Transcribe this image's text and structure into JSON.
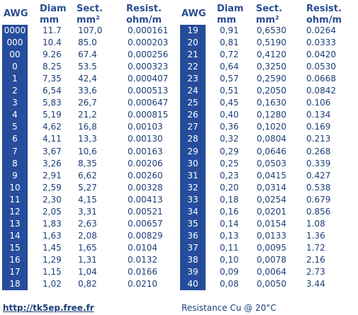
{
  "headers": {
    "awg": "AWG",
    "diam": "Diam\nmm",
    "sect": "Sect.\nmm²",
    "resist": "Resist.\nohm/m"
  },
  "left_rows": [
    {
      "awg": "0000",
      "diam": "11.7",
      "sect": "107,0",
      "resist": "0.000161"
    },
    {
      "awg": "000",
      "diam": "10.4",
      "sect": "85.0",
      "resist": "0.000203"
    },
    {
      "awg": "00",
      "diam": "9.26",
      "sect": "67.4",
      "resist": "0.000256"
    },
    {
      "awg": "0",
      "diam": "8.25",
      "sect": "53.5",
      "resist": "0.000323"
    },
    {
      "awg": "1",
      "diam": "7,35",
      "sect": "42,4",
      "resist": "0.000407"
    },
    {
      "awg": "2",
      "diam": "6,54",
      "sect": "33,6",
      "resist": "0.000513"
    },
    {
      "awg": "3",
      "diam": "5,83",
      "sect": "26,7",
      "resist": "0.000647"
    },
    {
      "awg": "4",
      "diam": "5,19",
      "sect": "21,2",
      "resist": "0.000815"
    },
    {
      "awg": "5",
      "diam": "4,62",
      "sect": "16,8",
      "resist": "0.00103"
    },
    {
      "awg": "6",
      "diam": "4,11",
      "sect": "13,3",
      "resist": "0.00130"
    },
    {
      "awg": "7",
      "diam": "3,67",
      "sect": "10,6",
      "resist": "0.00163"
    },
    {
      "awg": "8",
      "diam": "3,26",
      "sect": "8,35",
      "resist": "0.00206"
    },
    {
      "awg": "9",
      "diam": "2,91",
      "sect": "6,62",
      "resist": "0.00260"
    },
    {
      "awg": "10",
      "diam": "2,59",
      "sect": "5,27",
      "resist": "0.00328"
    },
    {
      "awg": "11",
      "diam": "2,30",
      "sect": "4,15",
      "resist": "0.00413"
    },
    {
      "awg": "12",
      "diam": "2,05",
      "sect": "3,31",
      "resist": "0.00521"
    },
    {
      "awg": "13",
      "diam": "1,83",
      "sect": "2,63",
      "resist": "0.00657"
    },
    {
      "awg": "14",
      "diam": "1,63",
      "sect": "2,08",
      "resist": "0.00829"
    },
    {
      "awg": "15",
      "diam": "1,45",
      "sect": "1,65",
      "resist": "0.0104"
    },
    {
      "awg": "16",
      "diam": "1,29",
      "sect": "1,31",
      "resist": "0.0132"
    },
    {
      "awg": "17",
      "diam": "1,15",
      "sect": "1,04",
      "resist": "0.0166"
    },
    {
      "awg": "18",
      "diam": "1,02",
      "sect": "0,82",
      "resist": "0.0210"
    }
  ],
  "right_rows": [
    {
      "awg": "19",
      "diam": "0,91",
      "sect": "0,6530",
      "resist": "0.0264"
    },
    {
      "awg": "20",
      "diam": "0,81",
      "sect": "0,5190",
      "resist": "0.0333"
    },
    {
      "awg": "21",
      "diam": "0,72",
      "sect": "0,4120",
      "resist": "0.0420"
    },
    {
      "awg": "22",
      "diam": "0,64",
      "sect": "0,3250",
      "resist": "0.0530"
    },
    {
      "awg": "23",
      "diam": "0,57",
      "sect": "0,2590",
      "resist": "0.0668"
    },
    {
      "awg": "24",
      "diam": "0,51",
      "sect": "0,2050",
      "resist": "0.0842"
    },
    {
      "awg": "25",
      "diam": "0,45",
      "sect": "0,1630",
      "resist": "0.106"
    },
    {
      "awg": "26",
      "diam": "0,40",
      "sect": "0,1280",
      "resist": "0.134"
    },
    {
      "awg": "27",
      "diam": "0,36",
      "sect": "0,1020",
      "resist": "0.169"
    },
    {
      "awg": "28",
      "diam": "0,32",
      "sect": "0,0804",
      "resist": "0.213"
    },
    {
      "awg": "29",
      "diam": "0,29",
      "sect": "0,0646",
      "resist": "0.268"
    },
    {
      "awg": "30",
      "diam": "0,25",
      "sect": "0,0503",
      "resist": "0.339"
    },
    {
      "awg": "31",
      "diam": "0,23",
      "sect": "0,0415",
      "resist": "0.427"
    },
    {
      "awg": "32",
      "diam": "0,20",
      "sect": "0,0314",
      "resist": "0.538"
    },
    {
      "awg": "33",
      "diam": "0,18",
      "sect": "0,0254",
      "resist": "0.679"
    },
    {
      "awg": "34",
      "diam": "0,16",
      "sect": "0,0201",
      "resist": "0.856"
    },
    {
      "awg": "35",
      "diam": "0,14",
      "sect": "0,0154",
      "resist": "1.08"
    },
    {
      "awg": "36",
      "diam": "0,13",
      "sect": "0,0133",
      "resist": "1.36"
    },
    {
      "awg": "37",
      "diam": "0,11",
      "sect": "0,0095",
      "resist": "1.72"
    },
    {
      "awg": "38",
      "diam": "0,10",
      "sect": "0,0078",
      "resist": "2.16"
    },
    {
      "awg": "39",
      "diam": "0,09",
      "sect": "0,0064",
      "resist": "2.73"
    },
    {
      "awg": "40",
      "diam": "0,08",
      "sect": "0,0050",
      "resist": "3.44"
    }
  ],
  "footer": {
    "link": "http://tk5ep.free.fr",
    "note": "Resistance Cu @ 20°C"
  },
  "colors": {
    "awg_background": "#254d9c",
    "text": "#1e3f7a"
  }
}
